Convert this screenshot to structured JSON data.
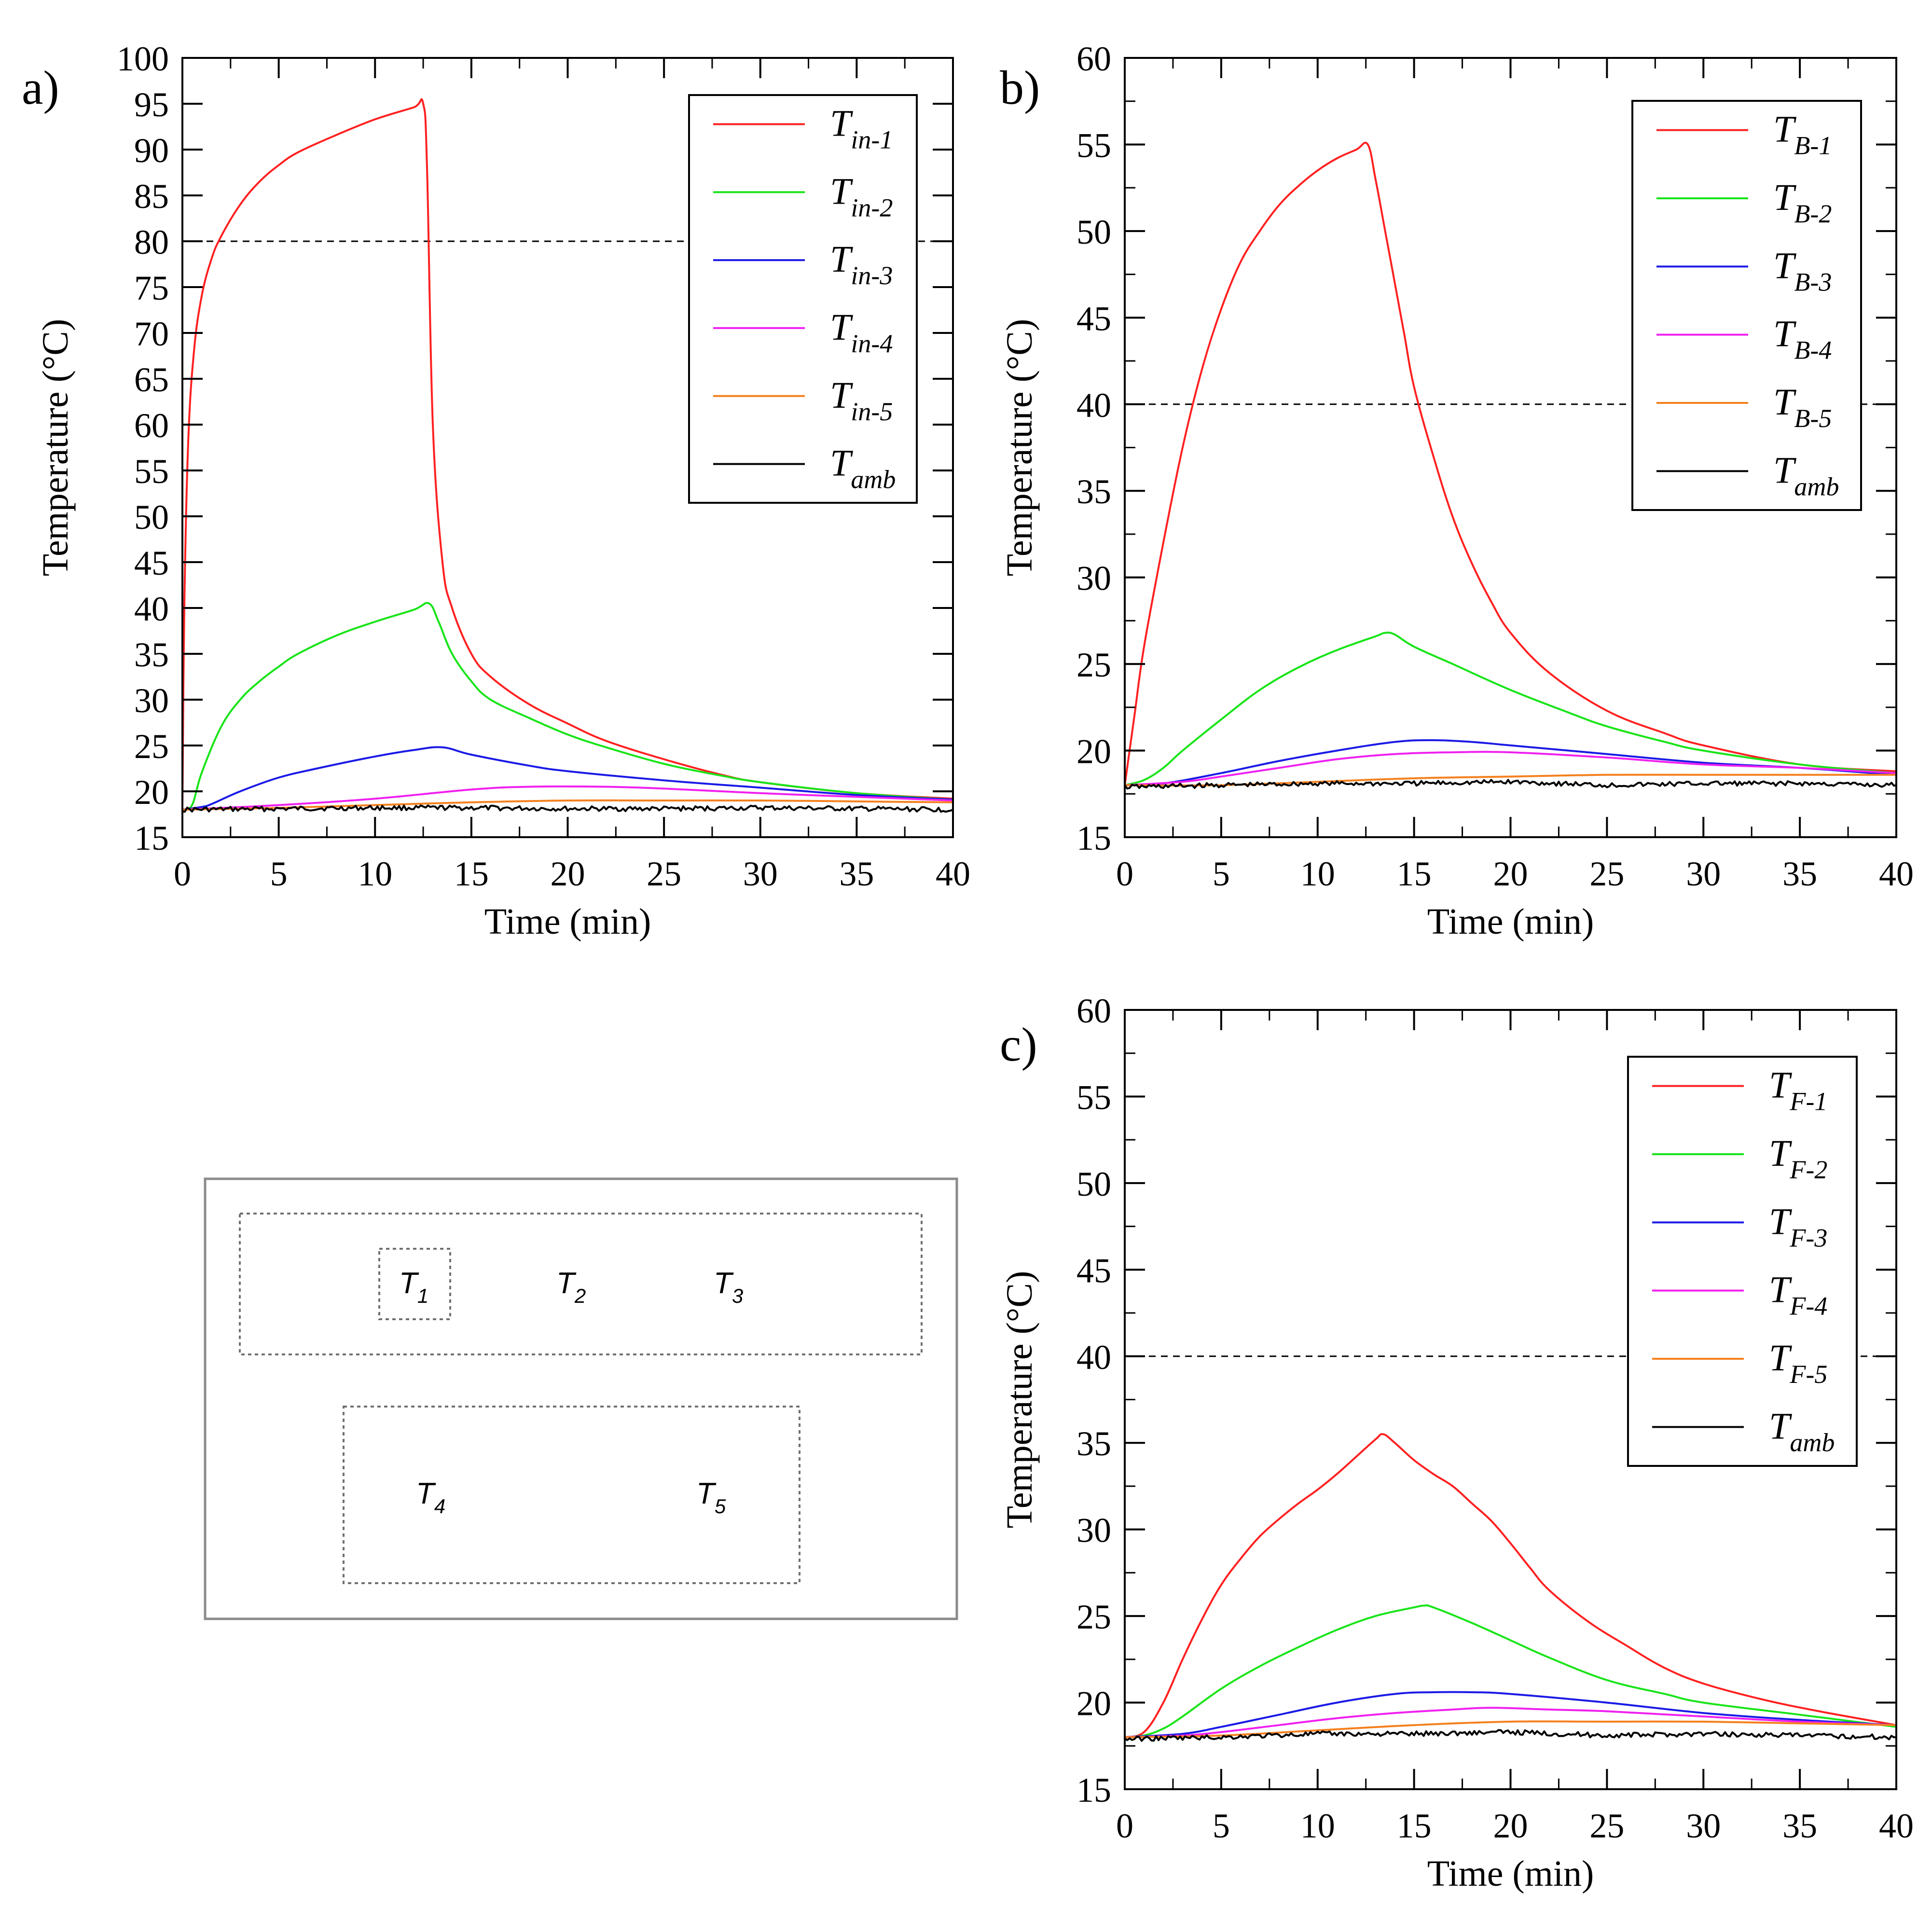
{
  "colors": {
    "red": "#ff2020",
    "green": "#18e418",
    "blue": "#1a1ae6",
    "magenta": "#f020f0",
    "orange": "#f5801e",
    "black": "#000000"
  },
  "chart_data": [
    {
      "panel": "a)",
      "type": "line",
      "xlabel": "Time (min)",
      "ylabel": "Temperature (°C)",
      "xlim": [
        0,
        40
      ],
      "ylim": [
        15,
        100
      ],
      "xticks": [
        0,
        5,
        10,
        15,
        20,
        25,
        30,
        35,
        40
      ],
      "yticks": [
        15,
        20,
        25,
        30,
        35,
        40,
        45,
        50,
        55,
        60,
        65,
        70,
        75,
        80,
        85,
        90,
        95,
        100
      ],
      "threshold": 80,
      "legend_position": "top-right",
      "series": [
        {
          "name": "T",
          "sub": "in-1",
          "color": "red",
          "x": [
            0,
            0.1,
            0.3,
            0.6,
            1,
            1.5,
            2,
            3,
            4,
            5,
            6,
            8,
            10,
            12,
            12.5,
            12.7,
            13,
            13.5,
            14,
            15,
            16,
            18,
            20,
            22,
            25,
            28,
            30,
            35,
            40
          ],
          "y": [
            18,
            40,
            58,
            68,
            74,
            78,
            80.5,
            84,
            86.5,
            88.3,
            89.7,
            91.6,
            93.3,
            94.6,
            95,
            88,
            60,
            45,
            40,
            35,
            32.5,
            29.5,
            27.4,
            25.5,
            23.5,
            21.8,
            21,
            19.8,
            19.2
          ]
        },
        {
          "name": "T",
          "sub": "in-2",
          "color": "green",
          "x": [
            0,
            0.5,
            1,
            2,
            3,
            4,
            5,
            6,
            8,
            10,
            12,
            12.8,
            13.3,
            14,
            15,
            16,
            18,
            20,
            22,
            25,
            28,
            30,
            35,
            40
          ],
          "y": [
            18,
            18.5,
            22,
            27,
            30,
            32,
            33.6,
            35,
            37,
            38.5,
            39.8,
            40.5,
            38.5,
            35,
            32,
            30,
            28,
            26.2,
            24.8,
            23,
            21.7,
            21,
            19.8,
            19.1
          ]
        },
        {
          "name": "T",
          "sub": "in-3",
          "color": "blue",
          "x": [
            0,
            1,
            1.5,
            3,
            5,
            7,
            10,
            12,
            13.5,
            15,
            18,
            20,
            25,
            30,
            35,
            40
          ],
          "y": [
            18,
            18.3,
            18.6,
            20,
            21.5,
            22.5,
            23.8,
            24.5,
            24.8,
            24,
            22.8,
            22.2,
            21.2,
            20.4,
            19.6,
            19.1
          ]
        },
        {
          "name": "T",
          "sub": "in-4",
          "color": "magenta",
          "x": [
            0,
            5,
            10,
            15,
            18,
            22,
            25,
            30,
            35,
            40
          ],
          "y": [
            18,
            18.5,
            19.2,
            20.2,
            20.5,
            20.5,
            20.3,
            19.8,
            19.4,
            19
          ]
        },
        {
          "name": "T",
          "sub": "in-5",
          "color": "orange",
          "x": [
            0,
            5,
            10,
            15,
            20,
            25,
            30,
            35,
            40
          ],
          "y": [
            18,
            18.2,
            18.5,
            18.8,
            19,
            19,
            19,
            18.9,
            18.8
          ]
        },
        {
          "name": "T",
          "sub": "amb",
          "color": "black",
          "x": [
            0,
            5,
            10,
            15,
            20,
            25,
            30,
            35,
            40
          ],
          "y": [
            18,
            18.1,
            18.2,
            18.2,
            18.1,
            18.1,
            18.2,
            18.1,
            18
          ]
        }
      ]
    },
    {
      "panel": "b)",
      "type": "line",
      "xlabel": "Time (min)",
      "ylabel": "Temperature (°C)",
      "xlim": [
        0,
        40
      ],
      "ylim": [
        15,
        60
      ],
      "xticks": [
        0,
        5,
        10,
        15,
        20,
        25,
        30,
        35,
        40
      ],
      "yticks": [
        15,
        20,
        25,
        30,
        35,
        40,
        45,
        50,
        55,
        60
      ],
      "threshold": 40,
      "legend_position": "top-right",
      "series": [
        {
          "name": "T",
          "sub": "B-1",
          "color": "red",
          "x": [
            0,
            0.5,
            1,
            2,
            3,
            4,
            5,
            6,
            7,
            8,
            9,
            10,
            11,
            12,
            12.6,
            13,
            13.5,
            14,
            14.5,
            15,
            16,
            17,
            18,
            19,
            20,
            22,
            25,
            28,
            30,
            35,
            40
          ],
          "y": [
            18,
            22,
            26,
            32,
            37.5,
            42,
            45.5,
            48.2,
            50,
            51.5,
            52.6,
            53.5,
            54.2,
            54.7,
            55,
            53,
            50,
            47,
            44,
            41,
            37,
            33.5,
            30.8,
            28.6,
            26.8,
            24.5,
            22.3,
            21,
            20.3,
            19.2,
            18.8
          ]
        },
        {
          "name": "T",
          "sub": "B-2",
          "color": "green",
          "x": [
            0,
            1,
            2,
            3,
            5,
            7,
            9,
            11,
            13,
            13.5,
            14,
            15,
            17,
            20,
            23,
            25,
            28,
            30,
            35,
            40
          ],
          "y": [
            18,
            18.3,
            19,
            20,
            21.8,
            23.5,
            24.8,
            25.8,
            26.6,
            26.8,
            26.7,
            26,
            25,
            23.5,
            22.2,
            21.4,
            20.5,
            20,
            19.2,
            18.7
          ]
        },
        {
          "name": "T",
          "sub": "B-3",
          "color": "blue",
          "x": [
            0,
            2,
            5,
            8,
            11,
            14,
            16,
            18,
            20,
            25,
            30,
            35,
            40
          ],
          "y": [
            18,
            18.1,
            18.7,
            19.4,
            20,
            20.5,
            20.6,
            20.5,
            20.3,
            19.8,
            19.3,
            19,
            18.6
          ]
        },
        {
          "name": "T",
          "sub": "B-4",
          "color": "magenta",
          "x": [
            0,
            3,
            5,
            8,
            11,
            14,
            17,
            20,
            25,
            30,
            35,
            40
          ],
          "y": [
            18,
            18.2,
            18.5,
            19,
            19.5,
            19.8,
            19.9,
            19.9,
            19.6,
            19.2,
            19,
            18.7
          ]
        },
        {
          "name": "T",
          "sub": "B-5",
          "color": "orange",
          "x": [
            0,
            5,
            10,
            15,
            20,
            25,
            30,
            35,
            40
          ],
          "y": [
            18,
            18,
            18.2,
            18.4,
            18.5,
            18.6,
            18.6,
            18.6,
            18.6
          ]
        },
        {
          "name": "T",
          "sub": "amb",
          "color": "black",
          "x": [
            0,
            5,
            10,
            15,
            20,
            25,
            30,
            35,
            40
          ],
          "y": [
            17.9,
            18,
            18.1,
            18.1,
            18.2,
            18,
            18.1,
            18.1,
            18
          ]
        }
      ]
    },
    {
      "panel": "c)",
      "type": "line",
      "xlabel": "Time (min)",
      "ylabel": "Temperature (°C)",
      "xlim": [
        0,
        40
      ],
      "ylim": [
        15,
        60
      ],
      "xticks": [
        0,
        5,
        10,
        15,
        20,
        25,
        30,
        35,
        40
      ],
      "yticks": [
        15,
        20,
        25,
        30,
        35,
        40,
        45,
        50,
        55,
        60
      ],
      "threshold": 40,
      "legend_position": "top-right",
      "series": [
        {
          "name": "T",
          "sub": "F-1",
          "color": "red",
          "x": [
            0,
            1,
            2,
            3,
            4,
            5,
            6,
            7,
            8,
            9,
            10,
            11,
            12,
            13,
            13.4,
            14,
            15,
            16,
            17,
            18,
            19,
            20,
            21,
            22,
            24,
            26,
            28,
            30,
            33,
            36,
            40
          ],
          "y": [
            18,
            18.3,
            20,
            22.5,
            24.8,
            26.8,
            28.3,
            29.6,
            30.6,
            31.5,
            32.3,
            33.2,
            34.2,
            35.2,
            35.5,
            35,
            34,
            33.2,
            32.5,
            31.5,
            30.5,
            29.2,
            27.8,
            26.5,
            24.7,
            23.3,
            22,
            21.1,
            20.2,
            19.5,
            18.7
          ]
        },
        {
          "name": "T",
          "sub": "F-2",
          "color": "green",
          "x": [
            0,
            1,
            2,
            3,
            5,
            7,
            9,
            11,
            13,
            15,
            15.5,
            16,
            18,
            20,
            22,
            25,
            28,
            30,
            35,
            40
          ],
          "y": [
            18,
            18.1,
            18.5,
            19.2,
            20.8,
            22.1,
            23.2,
            24.2,
            25,
            25.5,
            25.6,
            25.5,
            24.6,
            23.6,
            22.6,
            21.3,
            20.5,
            20,
            19.3,
            18.6
          ]
        },
        {
          "name": "T",
          "sub": "F-3",
          "color": "blue",
          "x": [
            0,
            3,
            5,
            8,
            11,
            14,
            16,
            18,
            20,
            25,
            30,
            35,
            40
          ],
          "y": [
            18,
            18.2,
            18.6,
            19.3,
            20,
            20.5,
            20.6,
            20.6,
            20.5,
            20,
            19.4,
            19,
            18.7
          ]
        },
        {
          "name": "T",
          "sub": "F-4",
          "color": "magenta",
          "x": [
            0,
            3,
            5,
            8,
            11,
            14,
            17,
            19,
            22,
            25,
            30,
            35,
            40
          ],
          "y": [
            18,
            18.1,
            18.3,
            18.7,
            19.1,
            19.4,
            19.6,
            19.7,
            19.6,
            19.5,
            19.2,
            18.9,
            18.7
          ]
        },
        {
          "name": "T",
          "sub": "F-5",
          "color": "orange",
          "x": [
            0,
            5,
            10,
            15,
            20,
            25,
            30,
            35,
            40
          ],
          "y": [
            18,
            18.1,
            18.4,
            18.7,
            18.9,
            18.9,
            18.9,
            18.8,
            18.7
          ]
        },
        {
          "name": "T",
          "sub": "amb",
          "color": "black",
          "x": [
            0,
            5,
            10,
            15,
            20,
            25,
            30,
            35,
            40
          ],
          "y": [
            17.9,
            18,
            18.2,
            18.2,
            18.3,
            18.1,
            18.2,
            18.1,
            18
          ]
        }
      ]
    }
  ],
  "diagram": {
    "labels": [
      {
        "base": "T",
        "sub": "1"
      },
      {
        "base": "T",
        "sub": "2"
      },
      {
        "base": "T",
        "sub": "3"
      },
      {
        "base": "T",
        "sub": "4"
      },
      {
        "base": "T",
        "sub": "5"
      }
    ]
  }
}
